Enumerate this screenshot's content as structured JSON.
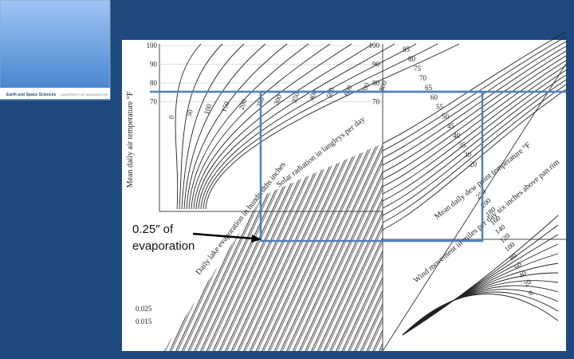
{
  "logo": {
    "text": "Earth and Space Sciences",
    "subtext": "UNIVERSITY OF WASHINGTON"
  },
  "annotation": {
    "lines": [
      "0.25″ of",
      "evaporation"
    ]
  },
  "nomograph": {
    "left_axis_label": "Mean daily air temperature °F",
    "left_ticks": [
      "100",
      "90",
      "80",
      "70"
    ],
    "middle_ticks": [
      "100",
      "90",
      "80",
      "70"
    ],
    "solar_curve_labels": [
      "0",
      "50",
      "100",
      "150",
      "200",
      "250",
      "300",
      "350",
      "400",
      "500",
      "600",
      "700",
      "800"
    ],
    "solar_label": "Solar radiation in langleys per day",
    "evaporation_label": "Daily lake evaporation in hundredths inches",
    "small_labels": [
      "0.025",
      "0.015"
    ],
    "dew_point_label": "Mean daily dew point temperature °F",
    "dew_point_labels": [
      "85",
      "80",
      "75",
      "70",
      "65",
      "60",
      "55",
      "50",
      "45",
      "40",
      "35",
      "30",
      "20"
    ],
    "wind_label": "Wind movement in miles per day six inches above pan rim",
    "wind_labels": [
      "250",
      "200",
      "180",
      "160",
      "140",
      "120",
      "100",
      "80",
      "60",
      "40",
      "20",
      "0"
    ]
  }
}
